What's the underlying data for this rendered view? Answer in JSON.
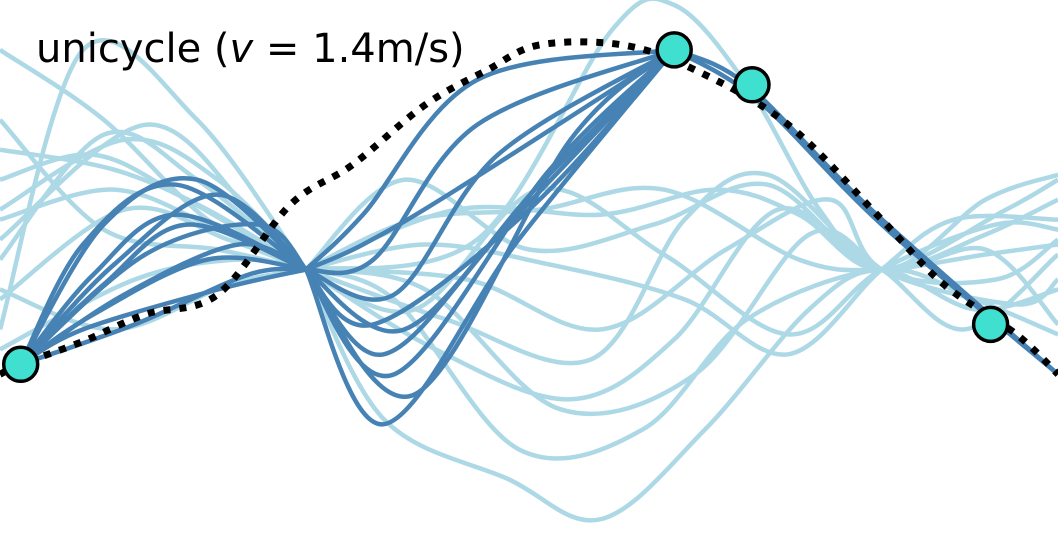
{
  "chart_data": {
    "type": "line",
    "title_prefix": "unicycle (",
    "title_var": "v",
    "title_suffix": " = 1.4m/s)",
    "xlabel": "",
    "ylabel": "",
    "grid": false,
    "axes_visible": false,
    "xlim": [
      -0.2,
      10.0
    ],
    "ylim": [
      -2.7,
      2.7
    ],
    "colors": {
      "sampled": "#add8e6",
      "selected": "#4682b4",
      "reference": "#000000",
      "waypoint_fill": "#40e0d0",
      "waypoint_edge": "#000000"
    },
    "series": [
      {
        "role": "reference",
        "style": "dotted",
        "points": [
          [
            -0.2,
            -1.05
          ],
          [
            0.0,
            -0.95
          ],
          [
            0.6,
            -0.72
          ],
          [
            1.2,
            -0.45
          ],
          [
            1.9,
            -0.25
          ],
          [
            2.6,
            0.65
          ],
          [
            3.2,
            1.05
          ],
          [
            3.9,
            1.65
          ],
          [
            4.5,
            2.0
          ],
          [
            5.0,
            2.25
          ],
          [
            5.8,
            2.25
          ],
          [
            6.5,
            2.0
          ],
          [
            7.4,
            1.45
          ],
          [
            8.3,
            0.5
          ],
          [
            8.9,
            -0.15
          ],
          [
            9.6,
            -0.65
          ],
          [
            10.0,
            -1.05
          ]
        ]
      },
      {
        "role": "selected-segment",
        "points": [
          [
            0.0,
            -0.95
          ],
          [
            0.6,
            0.25
          ],
          [
            1.5,
            0.85
          ],
          [
            2.75,
            0.0
          ]
        ]
      },
      {
        "role": "selected-segment",
        "points": [
          [
            0.0,
            -0.95
          ],
          [
            0.8,
            -0.15
          ],
          [
            1.6,
            0.45
          ],
          [
            2.75,
            0.0
          ]
        ]
      },
      {
        "role": "selected-segment",
        "points": [
          [
            0.0,
            -0.95
          ],
          [
            0.7,
            -0.45
          ],
          [
            1.8,
            0.1
          ],
          [
            2.75,
            0.0
          ]
        ]
      },
      {
        "role": "selected-segment",
        "points": [
          [
            0.0,
            -0.95
          ],
          [
            0.9,
            0.05
          ],
          [
            1.9,
            0.75
          ],
          [
            2.75,
            0.0
          ]
        ]
      },
      {
        "role": "selected-segment",
        "points": [
          [
            0.0,
            -0.95
          ],
          [
            1.0,
            -0.25
          ],
          [
            2.1,
            0.25
          ],
          [
            2.75,
            0.0
          ]
        ]
      },
      {
        "role": "selected-segment",
        "points": [
          [
            0.0,
            -0.95
          ],
          [
            0.6,
            -0.6
          ],
          [
            1.9,
            -0.2
          ],
          [
            2.75,
            0.0
          ]
        ]
      },
      {
        "role": "selected-segment",
        "points": [
          [
            0.0,
            -0.95
          ],
          [
            0.8,
            0.45
          ],
          [
            1.7,
            0.9
          ],
          [
            2.75,
            0.0
          ]
        ]
      },
      {
        "role": "selected-segment",
        "points": [
          [
            0.0,
            -0.95
          ],
          [
            1.1,
            -0.55
          ],
          [
            2.2,
            -0.05
          ],
          [
            2.75,
            0.0
          ]
        ]
      },
      {
        "role": "selected-segment",
        "points": [
          [
            0.0,
            -0.95
          ],
          [
            0.7,
            -0.05
          ],
          [
            1.5,
            0.55
          ],
          [
            2.75,
            0.0
          ]
        ]
      },
      {
        "role": "selected-segment",
        "points": [
          [
            0.0,
            -0.95
          ],
          [
            1.2,
            0.15
          ],
          [
            2.3,
            0.45
          ],
          [
            2.75,
            0.0
          ]
        ]
      },
      {
        "role": "selected-segment",
        "points": [
          [
            2.75,
            0.0
          ],
          [
            3.5,
            -1.55
          ],
          [
            4.8,
            0.3
          ],
          [
            6.3,
            2.2
          ]
        ]
      },
      {
        "role": "selected-segment",
        "points": [
          [
            2.75,
            0.0
          ],
          [
            3.3,
            0.55
          ],
          [
            4.4,
            1.9
          ],
          [
            6.3,
            2.2
          ]
        ]
      },
      {
        "role": "selected-segment",
        "points": [
          [
            2.75,
            0.0
          ],
          [
            3.6,
            -1.05
          ],
          [
            5.1,
            1.0
          ],
          [
            6.3,
            2.2
          ]
        ]
      },
      {
        "role": "selected-segment",
        "points": [
          [
            2.75,
            0.0
          ],
          [
            3.4,
            -0.55
          ],
          [
            4.9,
            0.6
          ],
          [
            6.3,
            2.2
          ]
        ]
      },
      {
        "role": "selected-segment",
        "points": [
          [
            2.75,
            0.0
          ],
          [
            3.6,
            -0.25
          ],
          [
            4.6,
            1.15
          ],
          [
            6.3,
            2.2
          ]
        ]
      },
      {
        "role": "selected-segment",
        "points": [
          [
            2.75,
            0.0
          ],
          [
            3.3,
            0.25
          ],
          [
            4.2,
            0.8
          ],
          [
            6.3,
            2.2
          ]
        ]
      },
      {
        "role": "selected-segment",
        "points": [
          [
            2.75,
            0.0
          ],
          [
            3.8,
            -1.25
          ],
          [
            5.3,
            1.3
          ],
          [
            6.3,
            2.2
          ]
        ]
      },
      {
        "role": "selected-segment",
        "points": [
          [
            2.75,
            0.0
          ],
          [
            3.5,
            -0.85
          ],
          [
            4.7,
            0.45
          ],
          [
            6.3,
            2.2
          ]
        ]
      },
      {
        "role": "selected-segment",
        "points": [
          [
            2.75,
            0.0
          ],
          [
            3.4,
            0.1
          ],
          [
            4.4,
            1.45
          ],
          [
            6.3,
            2.2
          ]
        ]
      },
      {
        "role": "selected-segment",
        "points": [
          [
            2.75,
            0.0
          ],
          [
            3.7,
            -0.6
          ],
          [
            5.0,
            0.85
          ],
          [
            6.3,
            2.2
          ]
        ]
      },
      {
        "role": "selected-segment",
        "points": [
          [
            6.3,
            2.2
          ],
          [
            7.1,
            1.7
          ],
          [
            8.3,
            0.45
          ],
          [
            10.0,
            -1.05
          ]
        ]
      },
      {
        "role": "selected-segment",
        "points": [
          [
            6.3,
            2.2
          ],
          [
            7.0,
            1.85
          ],
          [
            8.2,
            0.6
          ],
          [
            10.0,
            -1.05
          ]
        ]
      },
      {
        "role": "sampled",
        "points": [
          [
            -0.2,
            2.2
          ],
          [
            0.8,
            1.5
          ],
          [
            1.8,
            0.5
          ],
          [
            2.75,
            0.0
          ]
        ]
      },
      {
        "role": "sampled",
        "points": [
          [
            -0.2,
            1.2
          ],
          [
            0.9,
            1.0
          ],
          [
            1.8,
            0.6
          ],
          [
            2.75,
            0.0
          ]
        ]
      },
      {
        "role": "sampled",
        "points": [
          [
            -0.2,
            0.9
          ],
          [
            0.7,
            1.15
          ],
          [
            1.6,
            0.7
          ],
          [
            2.75,
            0.0
          ]
        ]
      },
      {
        "role": "sampled",
        "points": [
          [
            -0.2,
            0.5
          ],
          [
            0.9,
            0.8
          ],
          [
            1.9,
            0.4
          ],
          [
            2.75,
            0.0
          ]
        ]
      },
      {
        "role": "sampled",
        "points": [
          [
            -0.2,
            0.1
          ],
          [
            0.8,
            1.35
          ],
          [
            1.7,
            0.9
          ],
          [
            2.75,
            0.0
          ]
        ]
      },
      {
        "role": "sampled",
        "points": [
          [
            -0.2,
            -0.3
          ],
          [
            1.0,
            0.6
          ],
          [
            2.0,
            0.3
          ],
          [
            2.75,
            0.0
          ]
        ]
      },
      {
        "role": "sampled",
        "points": [
          [
            -0.2,
            -0.6
          ],
          [
            0.6,
            2.2
          ],
          [
            1.7,
            1.5
          ],
          [
            2.75,
            0.0
          ]
        ]
      },
      {
        "role": "sampled",
        "points": [
          [
            -0.2,
            0.6
          ],
          [
            1.0,
            1.3
          ],
          [
            1.9,
            0.9
          ],
          [
            2.75,
            0.0
          ]
        ]
      },
      {
        "role": "sampled",
        "points": [
          [
            -0.2,
            -0.8
          ],
          [
            1.1,
            -0.1
          ],
          [
            2.1,
            0.1
          ],
          [
            2.75,
            0.0
          ]
        ]
      },
      {
        "role": "sampled",
        "points": [
          [
            -0.2,
            1.5
          ],
          [
            0.8,
            0.4
          ],
          [
            1.9,
            0.2
          ],
          [
            2.75,
            0.0
          ]
        ]
      },
      {
        "role": "sampled",
        "points": [
          [
            -0.2,
            -0.2
          ],
          [
            0.9,
            -0.6
          ],
          [
            2.0,
            -0.15
          ],
          [
            2.75,
            0.0
          ]
        ]
      },
      {
        "role": "sampled",
        "points": [
          [
            -0.2,
            0.3
          ],
          [
            1.2,
            1.45
          ],
          [
            2.2,
            0.6
          ],
          [
            2.75,
            0.0
          ]
        ]
      },
      {
        "role": "sampled",
        "points": [
          [
            2.75,
            0.0
          ],
          [
            3.7,
            0.9
          ],
          [
            4.9,
            0.2
          ],
          [
            6.1,
            0.45
          ],
          [
            7.2,
            0.85
          ],
          [
            8.3,
            0.0
          ],
          [
            9.3,
            0.7
          ],
          [
            10.0,
            0.95
          ]
        ]
      },
      {
        "role": "sampled",
        "points": [
          [
            2.75,
            0.0
          ],
          [
            3.8,
            -0.4
          ],
          [
            5.0,
            0.8
          ],
          [
            6.2,
            0.15
          ],
          [
            7.4,
            -0.65
          ],
          [
            8.3,
            0.0
          ],
          [
            9.4,
            0.45
          ],
          [
            10.0,
            0.4
          ]
        ]
      },
      {
        "role": "sampled",
        "points": [
          [
            2.75,
            0.0
          ],
          [
            3.5,
            -1.5
          ],
          [
            4.7,
            -2.1
          ],
          [
            5.6,
            -2.5
          ],
          [
            6.6,
            -1.6
          ],
          [
            7.6,
            -0.4
          ],
          [
            8.3,
            0.0
          ],
          [
            9.2,
            -0.4
          ],
          [
            10.0,
            -0.2
          ]
        ]
      },
      {
        "role": "sampled",
        "points": [
          [
            2.75,
            0.0
          ],
          [
            4.0,
            -0.8
          ],
          [
            5.3,
            -1.3
          ],
          [
            6.3,
            -0.7
          ],
          [
            7.3,
            0.6
          ],
          [
            8.3,
            0.0
          ],
          [
            9.3,
            0.2
          ],
          [
            10.0,
            -0.55
          ]
        ]
      },
      {
        "role": "sampled",
        "points": [
          [
            2.75,
            0.0
          ],
          [
            3.9,
            -0.2
          ],
          [
            5.2,
            -1.4
          ],
          [
            6.5,
            -1.05
          ],
          [
            7.6,
            0.35
          ],
          [
            8.3,
            0.0
          ],
          [
            9.1,
            -0.6
          ],
          [
            10.0,
            0.15
          ]
        ]
      },
      {
        "role": "sampled",
        "points": [
          [
            2.75,
            0.0
          ],
          [
            4.2,
            0.6
          ],
          [
            5.6,
            0.55
          ],
          [
            6.7,
            0.8
          ],
          [
            7.5,
            0.55
          ],
          [
            8.3,
            0.0
          ],
          [
            9.5,
            0.6
          ],
          [
            10.0,
            0.9
          ]
        ]
      },
      {
        "role": "sampled",
        "points": [
          [
            2.75,
            0.0
          ],
          [
            3.6,
            -0.3
          ],
          [
            4.8,
            -1.8
          ],
          [
            6.0,
            -1.6
          ],
          [
            7.0,
            -0.5
          ],
          [
            8.3,
            0.0
          ],
          [
            9.2,
            -0.3
          ],
          [
            10.0,
            -0.65
          ]
        ]
      },
      {
        "role": "sampled",
        "points": [
          [
            2.75,
            0.0
          ],
          [
            4.4,
            0.3
          ],
          [
            5.7,
            2.4
          ],
          [
            6.3,
            2.65
          ],
          [
            7.0,
            1.85
          ],
          [
            7.7,
            0.6
          ],
          [
            8.3,
            0.0
          ],
          [
            9.3,
            0.35
          ],
          [
            10.0,
            0.7
          ]
        ]
      },
      {
        "role": "sampled",
        "points": [
          [
            2.75,
            0.0
          ],
          [
            4.1,
            -0.5
          ],
          [
            5.5,
            -0.9
          ],
          [
            6.4,
            0.5
          ],
          [
            7.2,
            0.95
          ],
          [
            8.3,
            0.0
          ],
          [
            9.4,
            -0.1
          ],
          [
            10.0,
            0.3
          ]
        ]
      },
      {
        "role": "sampled",
        "points": [
          [
            2.75,
            0.0
          ],
          [
            3.9,
            0.25
          ],
          [
            5.1,
            0.05
          ],
          [
            6.4,
            -0.3
          ],
          [
            7.4,
            -0.85
          ],
          [
            8.3,
            0.0
          ],
          [
            9.0,
            0.5
          ],
          [
            10.0,
            0.5
          ]
        ]
      },
      {
        "role": "sampled",
        "points": [
          [
            2.75,
            0.0
          ],
          [
            4.3,
            -0.1
          ],
          [
            5.6,
            -0.6
          ],
          [
            6.8,
            0.2
          ],
          [
            7.8,
            0.7
          ],
          [
            8.3,
            0.0
          ],
          [
            9.6,
            -0.35
          ],
          [
            10.0,
            -0.1
          ]
        ]
      },
      {
        "role": "sampled",
        "points": [
          [
            2.75,
            0.0
          ],
          [
            3.8,
            0.5
          ],
          [
            5.0,
            0.6
          ],
          [
            6.2,
            0.8
          ],
          [
            7.5,
            0.1
          ],
          [
            8.3,
            0.0
          ],
          [
            9.3,
            0.15
          ],
          [
            10.0,
            0.25
          ]
        ]
      }
    ],
    "waypoints": [
      [
        0.0,
        -0.95
      ],
      [
        6.3,
        2.2
      ],
      [
        7.05,
        1.85
      ],
      [
        9.35,
        -0.55
      ]
    ]
  }
}
